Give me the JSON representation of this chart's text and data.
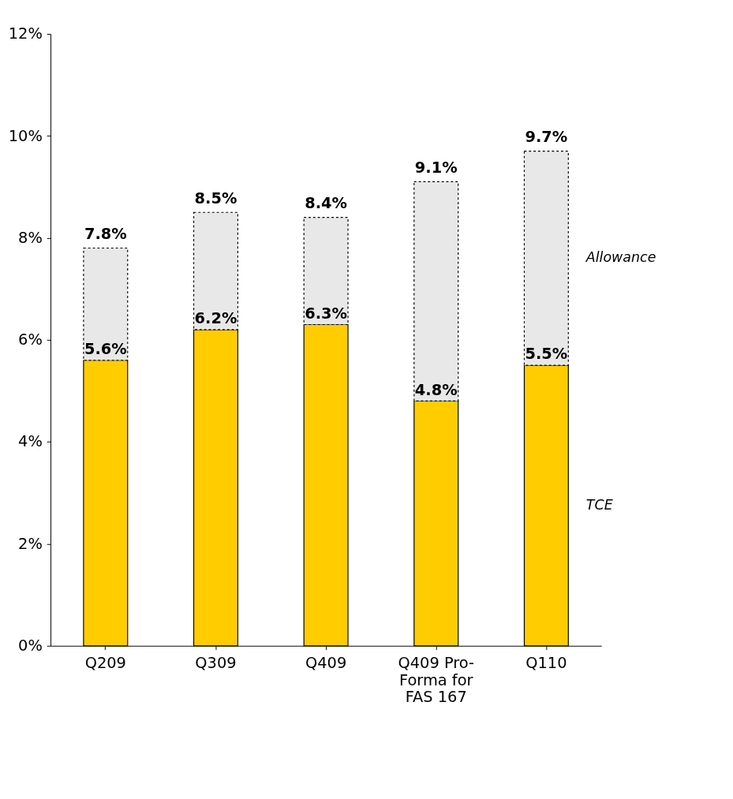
{
  "chart_data": {
    "type": "bar",
    "stacked": true,
    "categories": [
      "Q209",
      "Q309",
      "Q409",
      "Q409 Pro-Forma for FAS 167",
      "Q110"
    ],
    "series": [
      {
        "name": "TCE",
        "color": "#ffcc00",
        "values": [
          5.6,
          6.2,
          6.3,
          4.8,
          5.5
        ],
        "value_labels": [
          "5.6%",
          "6.2%",
          "6.3%",
          "4.8%",
          "5.5%"
        ]
      },
      {
        "name": "Allowance",
        "color": "#e8e8e8",
        "values": [
          2.2,
          2.3,
          2.1,
          4.3,
          4.2
        ]
      }
    ],
    "totals": [
      "7.8%",
      "8.5%",
      "8.4%",
      "9.1%",
      "9.7%"
    ],
    "ylim": [
      0,
      12
    ],
    "yticks": [
      {
        "value": 0,
        "label": "0%"
      },
      {
        "value": 2,
        "label": "2%"
      },
      {
        "value": 4,
        "label": "4%"
      },
      {
        "value": 6,
        "label": "6%"
      },
      {
        "value": 8,
        "label": "8%"
      },
      {
        "value": 10,
        "label": "10%"
      },
      {
        "value": 12,
        "label": "12%"
      }
    ],
    "legend": false
  }
}
